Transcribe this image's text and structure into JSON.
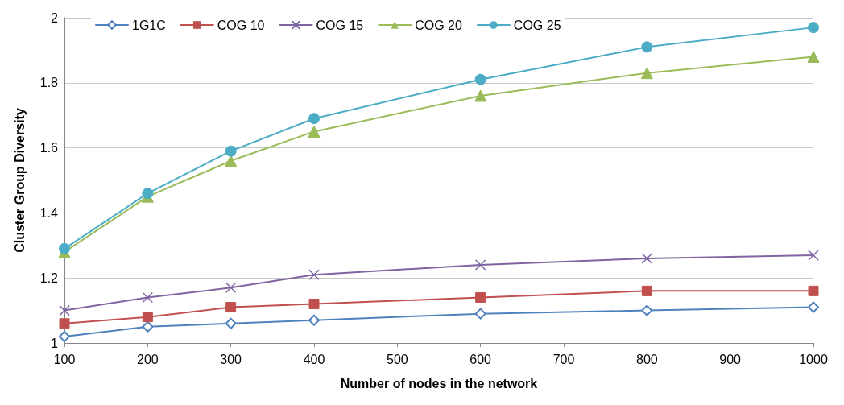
{
  "chart_data": {
    "type": "line",
    "xlabel": "Number of nodes in the network",
    "ylabel": "Cluster Group Diversity",
    "x": [
      100,
      200,
      300,
      400,
      600,
      800,
      1000
    ],
    "series": [
      {
        "name": "1G1C",
        "color": "#4f81bd",
        "marker": "diamond",
        "values": [
          1.02,
          1.05,
          1.06,
          1.07,
          1.09,
          1.1,
          1.11
        ]
      },
      {
        "name": "COG 10",
        "color": "#c0504d",
        "marker": "square",
        "values": [
          1.06,
          1.08,
          1.11,
          1.12,
          1.14,
          1.16,
          1.16
        ]
      },
      {
        "name": "COG 15",
        "color": "#8064a2",
        "marker": "cross",
        "values": [
          1.1,
          1.14,
          1.17,
          1.21,
          1.24,
          1.26,
          1.27
        ]
      },
      {
        "name": "COG 20",
        "color": "#9bbb59",
        "marker": "triangle",
        "values": [
          1.28,
          1.45,
          1.56,
          1.65,
          1.76,
          1.83,
          1.88
        ]
      },
      {
        "name": "COG 25",
        "color": "#4bacc6",
        "marker": "circle",
        "values": [
          1.29,
          1.46,
          1.59,
          1.69,
          1.81,
          1.91,
          1.97
        ]
      }
    ],
    "xlim": [
      100,
      1000
    ],
    "xticks": [
      100,
      200,
      300,
      400,
      500,
      600,
      700,
      800,
      900,
      1000
    ],
    "ylim": [
      1,
      2
    ],
    "yticks": [
      1,
      1.2,
      1.4,
      1.6,
      1.8,
      2
    ],
    "grid": "y",
    "legend": "top",
    "line_style": "solid"
  }
}
